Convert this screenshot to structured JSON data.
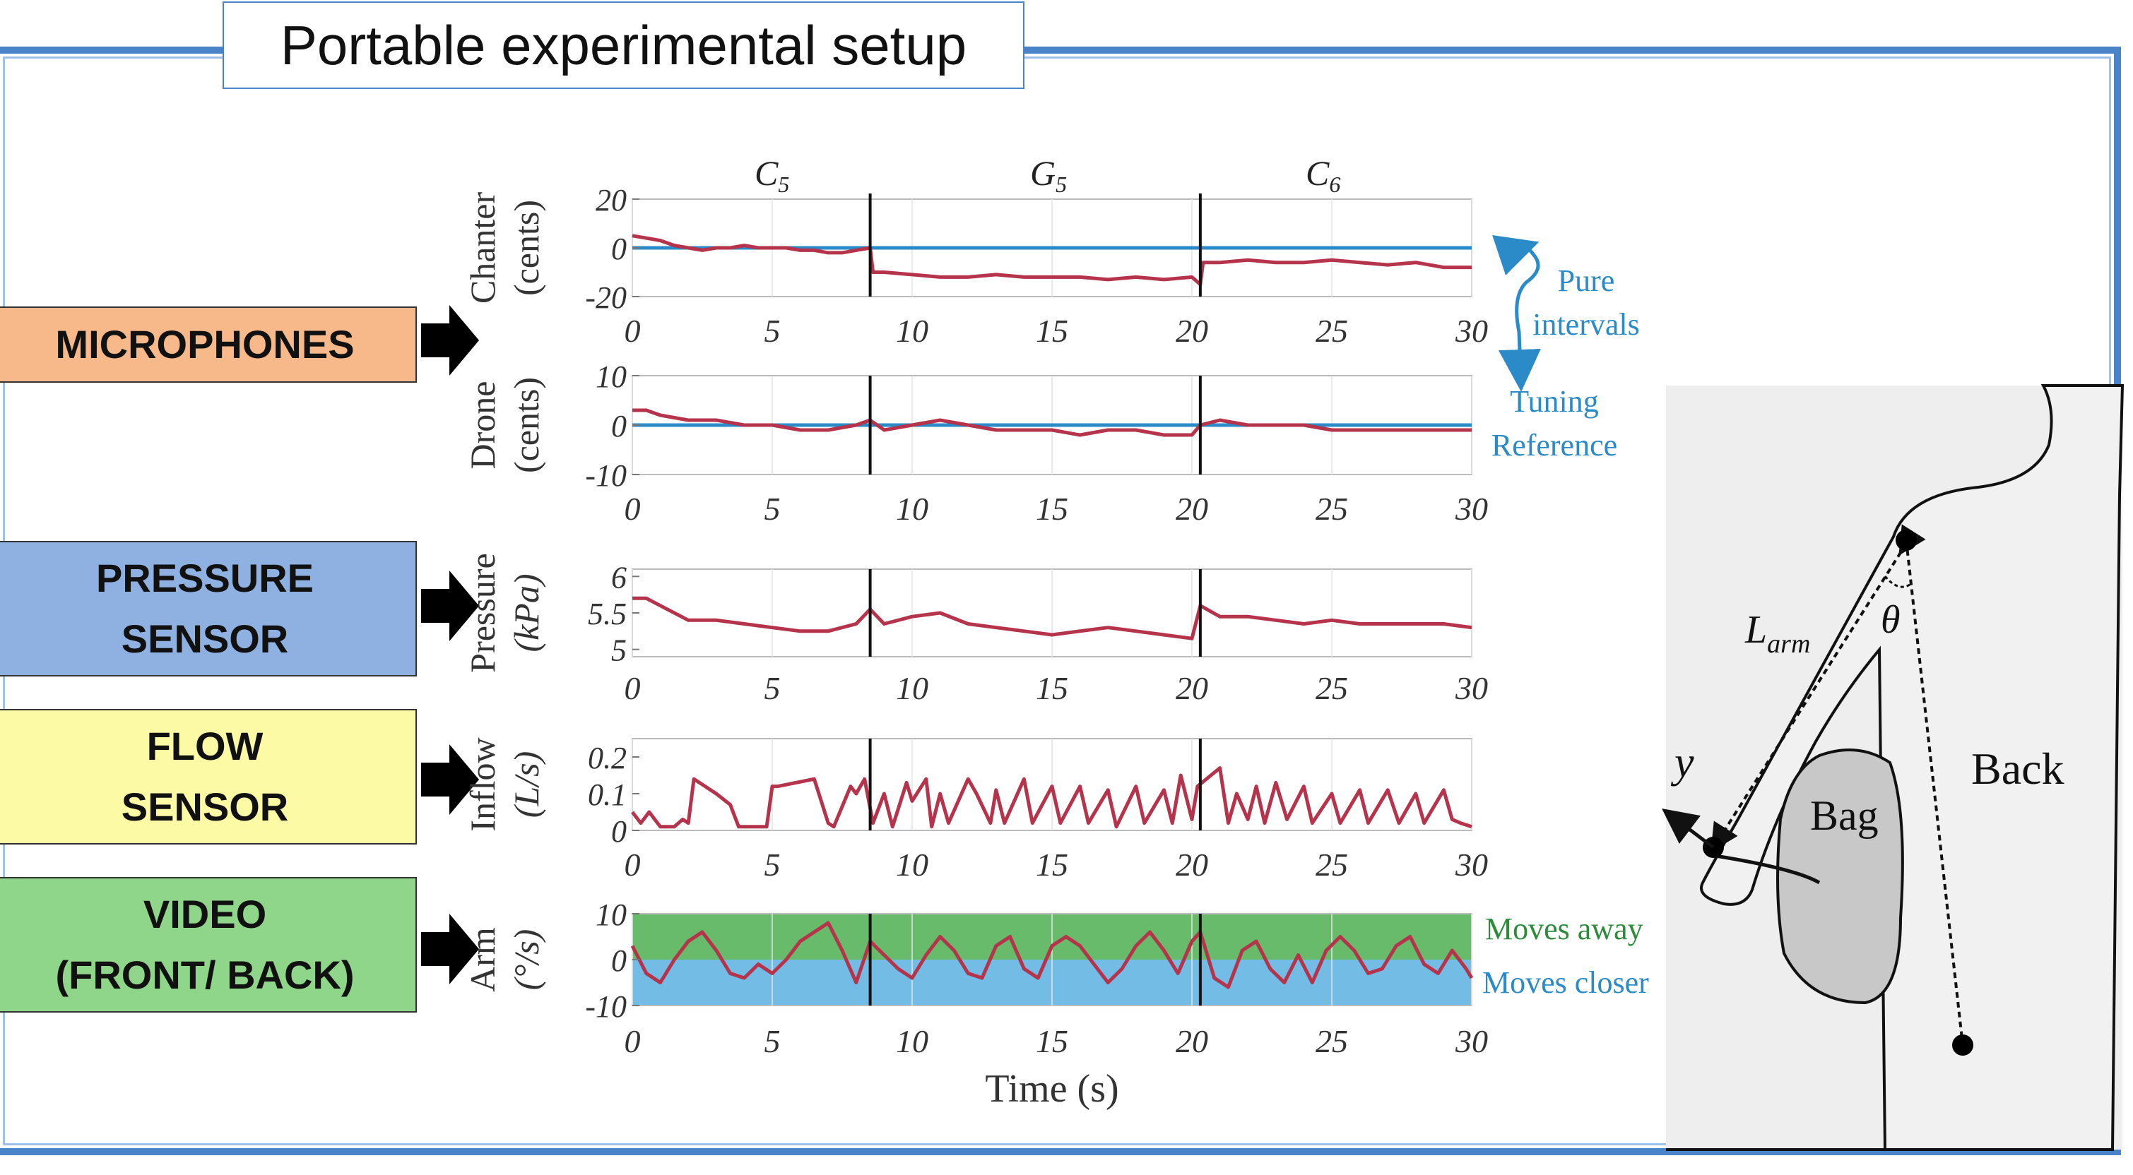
{
  "title": "Portable experimental setup",
  "colors": {
    "frame": "#4a83c8",
    "signal": "#b5344b",
    "reference": "#2b8ac8",
    "pure_intervals": "#2b8ac8",
    "moves_away_fill": "#4caf50",
    "moves_closer_fill": "#5ab0e0",
    "microphones_box": "#f7b98a",
    "pressure_box": "#8fb1e1",
    "flow_box": "#fdfaa6",
    "video_box": "#8fd58a"
  },
  "sensor_labels": [
    {
      "name": "microphones",
      "text": "MICROPHONES"
    },
    {
      "name": "pressure",
      "text": "PRESSURE\nSENSOR"
    },
    {
      "name": "flow",
      "text": "FLOW\nSENSOR"
    },
    {
      "name": "video",
      "text": "VIDEO\n(FRONT/ BACK)"
    }
  ],
  "annotations": {
    "pure_intervals": [
      "Pure",
      "intervals"
    ],
    "tuning_reference": [
      "Tuning",
      "Reference"
    ],
    "moves_away": "Moves away",
    "moves_closer": "Moves closer"
  },
  "segments": [
    {
      "label": "C",
      "sub": "5"
    },
    {
      "label": "G",
      "sub": "5"
    },
    {
      "label": "C",
      "sub": "6"
    }
  ],
  "diagram": {
    "l_arm": "L",
    "l_arm_sub": "arm",
    "theta": "θ",
    "y": "y",
    "bag": "Bag",
    "back": "Back"
  },
  "chart_data": [
    {
      "type": "line",
      "ylabel": [
        "Chanter",
        "(cents)"
      ],
      "ylim": [
        -20,
        20
      ],
      "yticks": [
        "20",
        "0",
        "-20"
      ],
      "xlim": [
        0,
        30
      ],
      "xticks": [
        "0",
        "5",
        "10",
        "15",
        "20",
        "25",
        "30"
      ],
      "boundaries": [
        8.5,
        20.3
      ],
      "reference": [
        0,
        0
      ],
      "series": [
        {
          "x": [
            0,
            0.5,
            1,
            1.5,
            2,
            2.5,
            3,
            3.5,
            4,
            4.5,
            5,
            5.5,
            6,
            6.5,
            7,
            7.5,
            8,
            8.5,
            8.6,
            9,
            10,
            11,
            12,
            13,
            14,
            15,
            16,
            17,
            18,
            19,
            20,
            20.3,
            20.4,
            21,
            22,
            23,
            24,
            25,
            26,
            27,
            28,
            29,
            30
          ],
          "y": [
            5,
            4,
            3,
            1,
            0,
            -1,
            0,
            0,
            1,
            0,
            0,
            0,
            -1,
            -1,
            -2,
            -2,
            -1,
            0,
            -10,
            -10,
            -11,
            -12,
            -12,
            -11,
            -12,
            -12,
            -12,
            -13,
            -12,
            -13,
            -12,
            -15,
            -6,
            -6,
            -5,
            -6,
            -6,
            -5,
            -6,
            -7,
            -6,
            -8,
            -8
          ]
        }
      ]
    },
    {
      "type": "line",
      "ylabel": [
        "Drone",
        "(cents)"
      ],
      "ylim": [
        -10,
        10
      ],
      "yticks": [
        "10",
        "0",
        "-10"
      ],
      "xlim": [
        0,
        30
      ],
      "xticks": [
        "0",
        "5",
        "10",
        "15",
        "20",
        "25",
        "30"
      ],
      "boundaries": [
        8.5,
        20.3
      ],
      "reference": [
        0,
        0
      ],
      "series": [
        {
          "x": [
            0,
            0.5,
            1,
            2,
            3,
            4,
            5,
            6,
            7,
            8,
            8.5,
            9,
            10,
            11,
            12,
            13,
            14,
            15,
            16,
            17,
            18,
            19,
            20,
            20.3,
            21,
            22,
            23,
            24,
            25,
            26,
            27,
            28,
            29,
            30
          ],
          "y": [
            3,
            3,
            2,
            1,
            1,
            0,
            0,
            -1,
            -1,
            0,
            1,
            -1,
            0,
            1,
            0,
            -1,
            -1,
            -1,
            -2,
            -1,
            -1,
            -2,
            -2,
            0,
            1,
            0,
            0,
            0,
            -1,
            -1,
            -1,
            -1,
            -1,
            -1
          ]
        }
      ]
    },
    {
      "type": "line",
      "ylabel": [
        "Pressure",
        "(kPa)"
      ],
      "ylim": [
        4.9,
        6.1
      ],
      "yticks": [
        "6",
        "5.5",
        "5"
      ],
      "xlim": [
        0,
        30
      ],
      "xticks": [
        "0",
        "5",
        "10",
        "15",
        "20",
        "25",
        "30"
      ],
      "boundaries": [
        8.5,
        20.3
      ],
      "series": [
        {
          "x": [
            0,
            0.5,
            1,
            1.5,
            2,
            3,
            4,
            5,
            6,
            7,
            8,
            8.5,
            9,
            10,
            11,
            12,
            13,
            14,
            15,
            16,
            17,
            18,
            19,
            20,
            20.3,
            21,
            22,
            23,
            24,
            25,
            26,
            27,
            28,
            29,
            30
          ],
          "y": [
            5.7,
            5.7,
            5.6,
            5.5,
            5.4,
            5.4,
            5.35,
            5.3,
            5.25,
            5.25,
            5.35,
            5.55,
            5.35,
            5.45,
            5.5,
            5.35,
            5.3,
            5.25,
            5.2,
            5.25,
            5.3,
            5.25,
            5.2,
            5.15,
            5.6,
            5.45,
            5.45,
            5.4,
            5.35,
            5.4,
            5.35,
            5.35,
            5.35,
            5.35,
            5.3
          ]
        }
      ]
    },
    {
      "type": "line",
      "ylabel": [
        "Inflow",
        "(L/s)"
      ],
      "ylim": [
        0,
        0.25
      ],
      "yticks": [
        "0.2",
        "0.1",
        "0"
      ],
      "xlim": [
        0,
        30
      ],
      "xticks": [
        "0",
        "5",
        "10",
        "15",
        "20",
        "25",
        "30"
      ],
      "boundaries": [
        8.5,
        20.3
      ],
      "series": [
        {
          "x": [
            0,
            0.3,
            0.6,
            1,
            1.5,
            1.8,
            2,
            2.2,
            3,
            3.5,
            3.8,
            4.8,
            5,
            5.2,
            6.5,
            7,
            7.2,
            7.8,
            8,
            8.3,
            8.6,
            9,
            9.3,
            9.8,
            10,
            10.5,
            10.7,
            11,
            11.3,
            12,
            12.3,
            12.8,
            13,
            13.3,
            14,
            14.3,
            15,
            15.3,
            16,
            16.3,
            17,
            17.3,
            18,
            18.3,
            19,
            19.3,
            19.6,
            20,
            20.2,
            21,
            21.3,
            21.6,
            22,
            22.3,
            22.6,
            23,
            23.4,
            24,
            24.3,
            25,
            25.3,
            26,
            26.3,
            27,
            27.4,
            28,
            28.3,
            29,
            29.3,
            29.6,
            30
          ],
          "y": [
            0.05,
            0.02,
            0.05,
            0.01,
            0.01,
            0.03,
            0.02,
            0.14,
            0.1,
            0.07,
            0.01,
            0.01,
            0.12,
            0.12,
            0.14,
            0.02,
            0.01,
            0.12,
            0.1,
            0.14,
            0.02,
            0.1,
            0.01,
            0.13,
            0.08,
            0.14,
            0.01,
            0.1,
            0.02,
            0.14,
            0.1,
            0.02,
            0.11,
            0.02,
            0.14,
            0.02,
            0.12,
            0.02,
            0.12,
            0.02,
            0.11,
            0.01,
            0.12,
            0.02,
            0.11,
            0.02,
            0.15,
            0.03,
            0.12,
            0.17,
            0.02,
            0.1,
            0.03,
            0.12,
            0.02,
            0.13,
            0.03,
            0.12,
            0.02,
            0.1,
            0.02,
            0.11,
            0.02,
            0.11,
            0.02,
            0.1,
            0.02,
            0.11,
            0.03,
            0.02,
            0.01
          ]
        }
      ]
    },
    {
      "type": "line",
      "ylabel": [
        "Arm",
        "(°/s)"
      ],
      "ylim": [
        -10,
        10
      ],
      "yticks": [
        "10",
        "0",
        "-10"
      ],
      "xlim": [
        0,
        30
      ],
      "xticks": [
        "0",
        "5",
        "10",
        "15",
        "20",
        "25",
        "30"
      ],
      "xlabel": "Time (s)",
      "boundaries": [
        8.5,
        20.3
      ],
      "shading": [
        {
          "from": 0,
          "to": 10,
          "name": "Moves away"
        },
        {
          "from": -10,
          "to": 0,
          "name": "Moves closer"
        }
      ],
      "series": [
        {
          "x": [
            0,
            0.5,
            1,
            1.5,
            2,
            2.5,
            3,
            3.5,
            4,
            4.5,
            5,
            5.5,
            6,
            6.5,
            7,
            7.5,
            8,
            8.5,
            9,
            9.5,
            10,
            10.5,
            11,
            11.5,
            12,
            12.5,
            13,
            13.5,
            14,
            14.5,
            15,
            15.5,
            16,
            16.5,
            17,
            17.5,
            18,
            18.5,
            19,
            19.5,
            20,
            20.3,
            20.8,
            21.3,
            21.8,
            22.3,
            22.8,
            23.3,
            23.8,
            24.3,
            24.8,
            25.3,
            25.8,
            26.3,
            26.8,
            27.3,
            27.8,
            28.3,
            28.8,
            29.3,
            29.8,
            30
          ],
          "y": [
            3,
            -3,
            -5,
            0,
            4,
            6,
            2,
            -3,
            -4,
            -1,
            -3,
            0,
            4,
            6,
            8,
            2,
            -5,
            4,
            1,
            -2,
            -4,
            1,
            5,
            2,
            -3,
            -4,
            3,
            5,
            -2,
            -4,
            3,
            5,
            3,
            -1,
            -5,
            -2,
            3,
            6,
            2,
            -3,
            4,
            6,
            -4,
            -6,
            2,
            4,
            -2,
            -5,
            1,
            -5,
            2,
            5,
            2,
            -3,
            -2,
            3,
            5,
            -1,
            -3,
            2,
            -2,
            -4
          ]
        }
      ]
    }
  ]
}
